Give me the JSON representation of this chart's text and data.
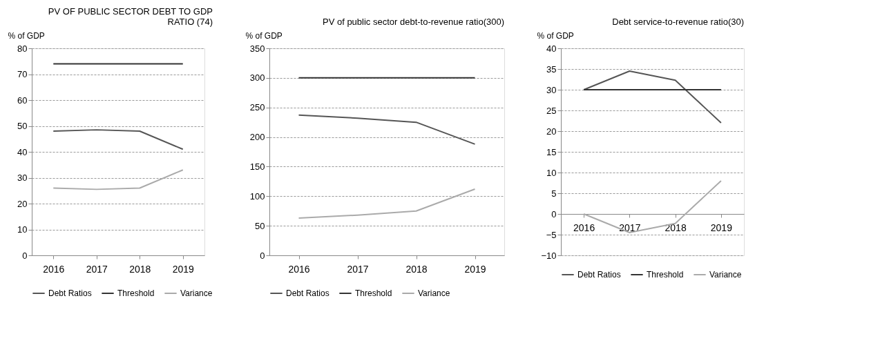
{
  "chart_data": [
    {
      "type": "line",
      "title": "PV OF PUBLIC SECTOR DEBT TO GDP RATIO (74)",
      "ylabel": "% of GDP",
      "categories": [
        "2016",
        "2017",
        "2018",
        "2019"
      ],
      "series": [
        {
          "name": "Debt Ratios",
          "color": "#555555",
          "values": [
            48,
            48.5,
            48,
            41
          ]
        },
        {
          "name": "Threshold",
          "color": "#333333",
          "values": [
            74,
            74,
            74,
            74
          ]
        },
        {
          "name": "Variance",
          "color": "#aaaaaa",
          "values": [
            26,
            25.5,
            26,
            33
          ]
        }
      ],
      "ylim": [
        0,
        80
      ],
      "yticks": [
        0,
        10,
        20,
        30,
        40,
        50,
        60,
        70,
        80
      ],
      "grid": "y",
      "legend": "bottom",
      "line_style": "solid",
      "marker": "none"
    },
    {
      "type": "line",
      "title": "PV of public sector debt-to-revenue ratio(300)",
      "ylabel": "% of GDP",
      "categories": [
        "2016",
        "2017",
        "2018",
        "2019"
      ],
      "series": [
        {
          "name": "Debt Ratios",
          "color": "#555555",
          "values": [
            237,
            232,
            225,
            188
          ]
        },
        {
          "name": "Threshold",
          "color": "#333333",
          "values": [
            300,
            300,
            300,
            300
          ]
        },
        {
          "name": "Variance",
          "color": "#aaaaaa",
          "values": [
            63,
            68,
            75,
            112
          ]
        }
      ],
      "ylim": [
        0,
        350
      ],
      "yticks": [
        0,
        50,
        100,
        150,
        200,
        250,
        300,
        350
      ],
      "grid": "y",
      "legend": "bottom",
      "line_style": "solid",
      "marker": "none"
    },
    {
      "type": "line",
      "title": "Debt service-to-revenue ratio(30)",
      "ylabel": "% of GDP",
      "categories": [
        "2016",
        "2017",
        "2018",
        "2019"
      ],
      "series": [
        {
          "name": "Debt Ratios",
          "color": "#555555",
          "values": [
            30,
            34.5,
            32.3,
            22
          ]
        },
        {
          "name": "Threshold",
          "color": "#333333",
          "values": [
            30,
            30,
            30,
            30
          ]
        },
        {
          "name": "Variance",
          "color": "#aaaaaa",
          "values": [
            0,
            -4.5,
            -2.3,
            8
          ]
        }
      ],
      "ylim": [
        -10,
        40
      ],
      "yticks": [
        -10,
        -5,
        0,
        5,
        10,
        15,
        20,
        25,
        30,
        35,
        40
      ],
      "grid": "y",
      "legend": "bottom",
      "line_style": "solid",
      "marker": "none"
    }
  ]
}
